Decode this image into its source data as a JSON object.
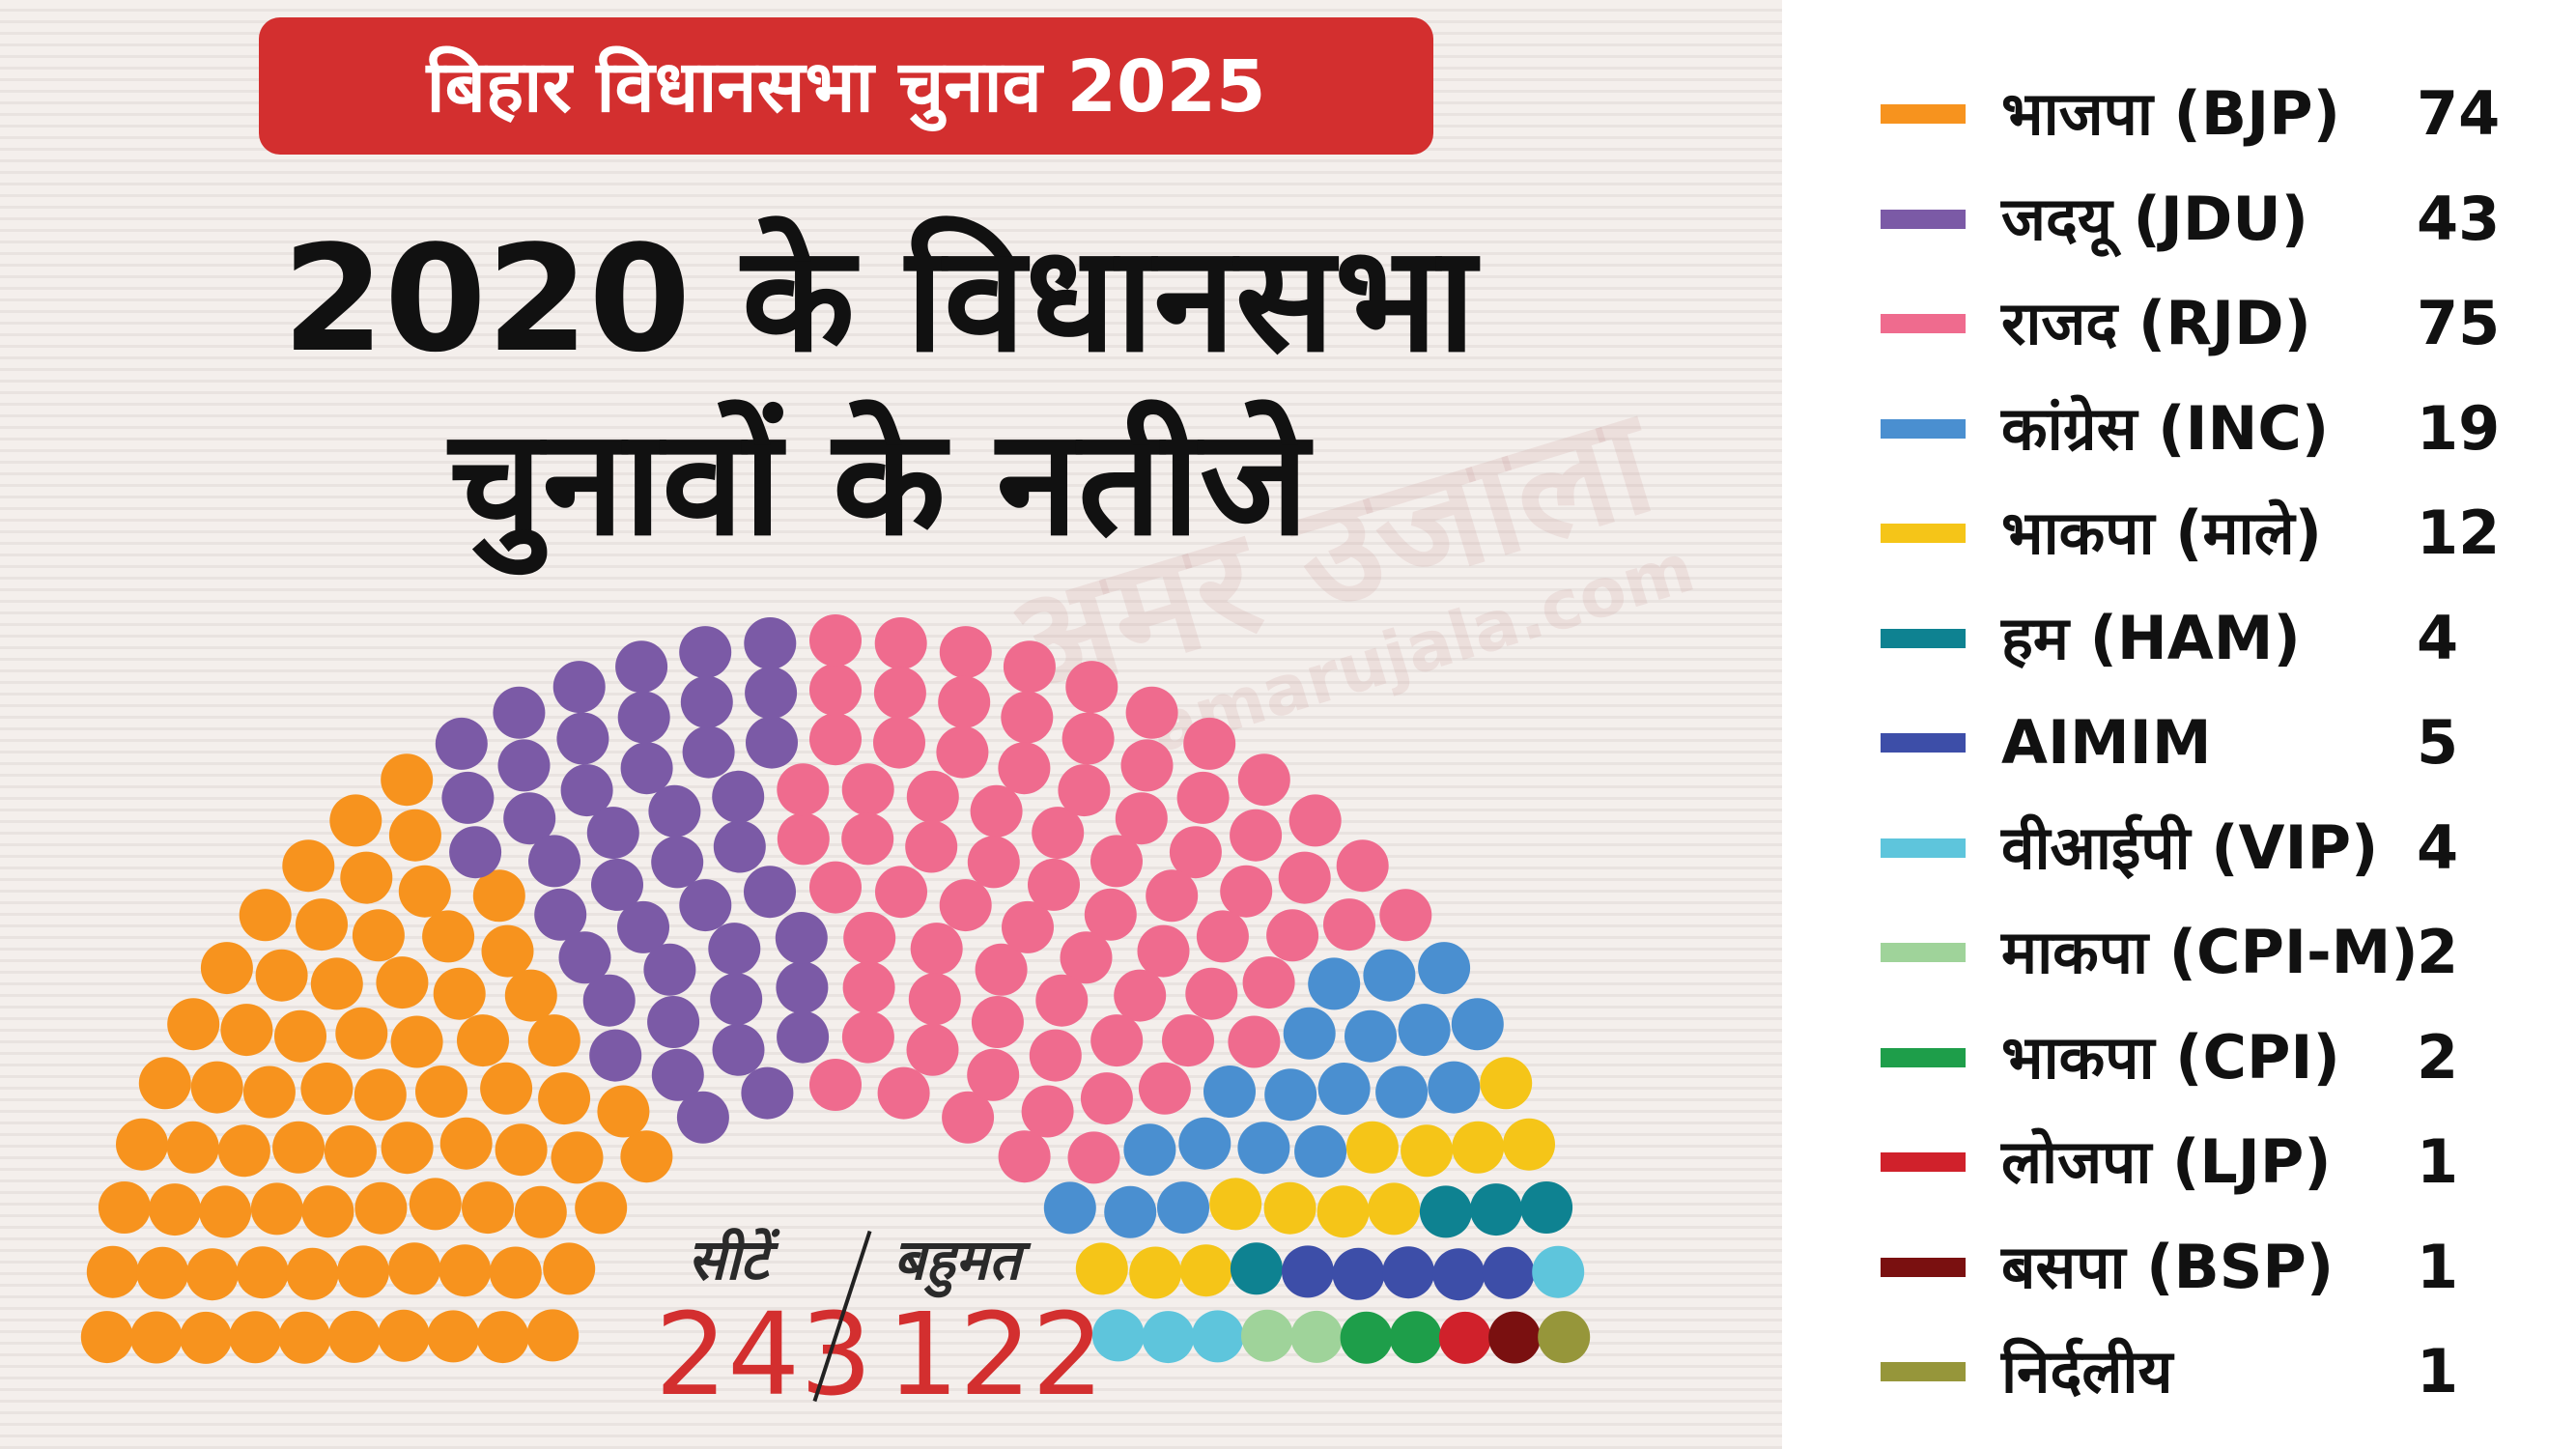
{
  "banner": {
    "text": "बिहार विधानसभा चुनाव 2025"
  },
  "headline": {
    "line1": "2020 के विधानसभा",
    "line2": "चुनावों के नतीजे"
  },
  "watermark": {
    "main": "अमर उजाला",
    "sub": "amarujala.com"
  },
  "totals": {
    "seats_label": "सीटें",
    "majority_label": "बहुमत",
    "seats_value": "243",
    "majority_value": "122"
  },
  "chart_data": {
    "type": "parliament",
    "total_seats": 243,
    "majority": 122,
    "series": [
      {
        "name": "भाजपा (BJP)",
        "value": 74,
        "color": "#f7931e"
      },
      {
        "name": "जदयू (JDU)",
        "value": 43,
        "color": "#7b5aa6"
      },
      {
        "name": "राजद (RJD)",
        "value": 75,
        "color": "#ef6b8e"
      },
      {
        "name": "कांग्रेस (INC)",
        "value": 19,
        "color": "#4a8fd0"
      },
      {
        "name": "भाकपा (माले)",
        "value": 12,
        "color": "#f5c518"
      },
      {
        "name": "हम (HAM)",
        "value": 4,
        "color": "#0e8291"
      },
      {
        "name": "AIMIM",
        "value": 5,
        "color": "#3d4ea8"
      },
      {
        "name": "वीआईपी (VIP)",
        "value": 4,
        "color": "#5ec5dc"
      },
      {
        "name": "माकपा (CPI-M)",
        "value": 2,
        "color": "#9fd39a"
      },
      {
        "name": "भाकपा (CPI)",
        "value": 2,
        "color": "#1e9e4a"
      },
      {
        "name": "लोजपा (LJP)",
        "value": 1,
        "color": "#d0212b"
      },
      {
        "name": "बसपा (BSP)",
        "value": 1,
        "color": "#7a1010"
      },
      {
        "name": "निर्दलीय",
        "value": 1,
        "color": "#96963a"
      }
    ]
  }
}
